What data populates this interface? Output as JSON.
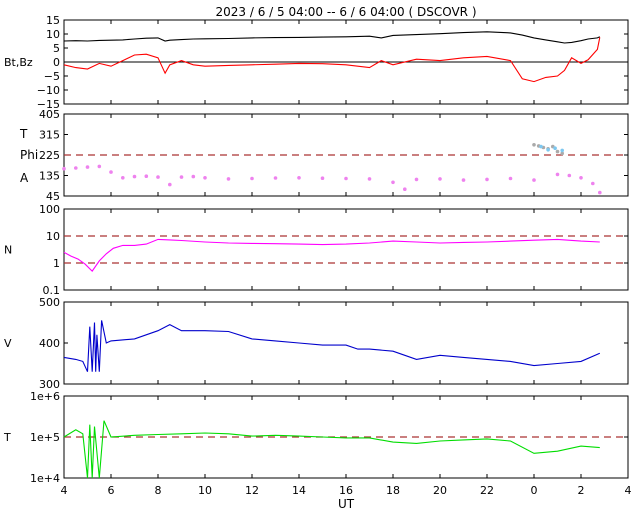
{
  "header": {
    "title": "2023  /  6 /  5   04:00  --  6 /  6   04:00 ( DSCOVR )"
  },
  "x_axis": {
    "label": "UT",
    "ticks": [
      "4",
      "6",
      "8",
      "10",
      "12",
      "14",
      "16",
      "18",
      "20",
      "22",
      "0",
      "2",
      "4"
    ]
  },
  "colors": {
    "bt": "#000000",
    "bz": "#ff0000",
    "theta": "#7ec8f0",
    "phi": "#aaaaaa",
    "angle": "#ee82ee",
    "density": "#ff00ff",
    "speed": "#0000cc",
    "temperature": "#00dd00",
    "ref_dash": "#aa3333"
  },
  "chart_data": [
    {
      "type": "line",
      "panel": "magnetic-field",
      "ylabel": "Bt,Bz",
      "y_ticks": [
        "15",
        "10",
        "5",
        "0",
        "−5",
        "−10",
        "−15"
      ],
      "ylim": [
        -15,
        15
      ],
      "zero_line": 0,
      "x": [
        4,
        4.5,
        5,
        5.5,
        6,
        6.5,
        7,
        7.5,
        8,
        8.3,
        8.5,
        9,
        9.5,
        10,
        11,
        12,
        13,
        14,
        15,
        16,
        17,
        17.5,
        18,
        19,
        20,
        21,
        22,
        23,
        23.5,
        24,
        24.5,
        25,
        25.3,
        25.6,
        26,
        26.3,
        26.7,
        26.8
      ],
      "series": [
        {
          "name": "Bt",
          "values": [
            7.5,
            7.6,
            7.5,
            7.7,
            7.8,
            7.9,
            8.2,
            8.5,
            8.6,
            7.5,
            7.8,
            8.0,
            8.2,
            8.3,
            8.4,
            8.6,
            8.7,
            8.8,
            8.9,
            9.0,
            9.2,
            8.6,
            9.5,
            9.8,
            10.1,
            10.5,
            10.8,
            10.4,
            9.6,
            8.6,
            7.9,
            7.2,
            6.8,
            7.0,
            7.6,
            8.2,
            8.6,
            9.0
          ]
        },
        {
          "name": "Bz",
          "values": [
            -1.0,
            -2.0,
            -2.5,
            -0.5,
            -1.5,
            0.5,
            2.5,
            2.8,
            1.5,
            -4.0,
            -1.0,
            0.5,
            -1.0,
            -1.5,
            -1.2,
            -1.0,
            -0.8,
            -0.5,
            -0.6,
            -1.0,
            -2.0,
            0.5,
            -1.0,
            1.0,
            0.5,
            1.5,
            2.0,
            0.5,
            -6.0,
            -7.0,
            -5.5,
            -5.0,
            -3.0,
            1.5,
            -0.5,
            0.8,
            4.5,
            8.8
          ]
        }
      ]
    },
    {
      "type": "scatter",
      "panel": "angles",
      "ylabel_lines": [
        "T",
        "Phi",
        "A"
      ],
      "y_ticks": [
        "405",
        "315",
        "225",
        "135",
        "45"
      ],
      "ylim": [
        45,
        405
      ],
      "reference_lines": [
        225
      ],
      "x": [
        4,
        4.5,
        5,
        5.5,
        6,
        6.5,
        7,
        7.5,
        8,
        8.5,
        9,
        9.5,
        10,
        11,
        12,
        13,
        14,
        15,
        16,
        17,
        18,
        18.5,
        19,
        20,
        21,
        22,
        23,
        24,
        25,
        25.5,
        26,
        26.5,
        26.8
      ],
      "series": [
        {
          "name": "A",
          "values": [
            165,
            168,
            172,
            175,
            150,
            125,
            130,
            132,
            128,
            95,
            128,
            130,
            125,
            120,
            122,
            124,
            125,
            123,
            122,
            120,
            105,
            75,
            118,
            120,
            115,
            118,
            122,
            115,
            140,
            135,
            125,
            100,
            60
          ]
        },
        {
          "name": "Phi",
          "x": [
            24,
            24.2,
            24.4,
            24.6,
            24.8,
            25,
            25.2
          ],
          "values": [
            270,
            265,
            258,
            252,
            262,
            240,
            232
          ]
        },
        {
          "name": "T",
          "x": [
            24.3,
            24.6,
            24.9,
            25.2
          ],
          "values": [
            262,
            248,
            255,
            245
          ]
        }
      ]
    },
    {
      "type": "line",
      "panel": "density",
      "ylabel": "N",
      "y_ticks": [
        "100",
        "10",
        "1",
        "0.1"
      ],
      "ylim": [
        0.1,
        100
      ],
      "yscale": "log",
      "reference_lines": [
        1,
        10
      ],
      "x": [
        4,
        4.3,
        4.6,
        4.9,
        5.2,
        5.5,
        5.8,
        6.1,
        6.5,
        7,
        7.5,
        8,
        8.5,
        9,
        10,
        11,
        12,
        13,
        14,
        15,
        16,
        17,
        18,
        19,
        20,
        21,
        22,
        23,
        24,
        25,
        26,
        26.8
      ],
      "values": [
        2.5,
        1.8,
        1.4,
        0.9,
        0.5,
        1.2,
        2.2,
        3.5,
        4.5,
        4.5,
        5.0,
        7.5,
        7.2,
        6.8,
        6.0,
        5.5,
        5.3,
        5.2,
        5.0,
        4.8,
        5.0,
        5.5,
        6.5,
        6.0,
        5.5,
        5.8,
        6.0,
        6.5,
        7.0,
        7.5,
        6.5,
        6.0
      ]
    },
    {
      "type": "line",
      "panel": "speed",
      "ylabel": "V",
      "y_ticks": [
        "500",
        "400",
        "300"
      ],
      "ylim": [
        300,
        500
      ],
      "x": [
        4,
        4.5,
        4.8,
        5.0,
        5.1,
        5.2,
        5.3,
        5.35,
        5.4,
        5.5,
        5.6,
        5.8,
        6,
        7,
        8,
        8.5,
        9,
        10,
        11,
        12,
        13,
        14,
        15,
        16,
        16.5,
        17,
        18,
        18.5,
        19,
        20,
        21,
        22,
        23,
        24,
        25,
        26,
        26.8
      ],
      "values": [
        365,
        360,
        355,
        330,
        440,
        330,
        450,
        330,
        420,
        330,
        455,
        400,
        405,
        410,
        430,
        445,
        430,
        430,
        428,
        410,
        405,
        400,
        395,
        395,
        385,
        385,
        380,
        370,
        360,
        370,
        365,
        360,
        355,
        345,
        350,
        355,
        375
      ]
    },
    {
      "type": "line",
      "panel": "temperature",
      "ylabel": "T",
      "y_ticks": [
        "1e+6",
        "1e+5",
        "1e+4"
      ],
      "ylim": [
        10000,
        1000000
      ],
      "yscale": "log",
      "reference_lines": [
        100000
      ],
      "x": [
        4,
        4.5,
        4.8,
        5.0,
        5.1,
        5.2,
        5.3,
        5.5,
        5.7,
        6,
        7,
        8,
        9,
        10,
        11,
        12,
        13,
        14,
        15,
        16,
        17,
        18,
        19,
        20,
        21,
        22,
        23,
        24,
        25,
        26,
        26.8
      ],
      "values": [
        100000,
        150000,
        120000,
        10000,
        200000,
        10000,
        180000,
        10000,
        250000,
        100000,
        110000,
        115000,
        120000,
        125000,
        120000,
        105000,
        110000,
        105000,
        100000,
        95000,
        95000,
        75000,
        70000,
        80000,
        85000,
        90000,
        80000,
        40000,
        45000,
        60000,
        55000
      ]
    }
  ]
}
